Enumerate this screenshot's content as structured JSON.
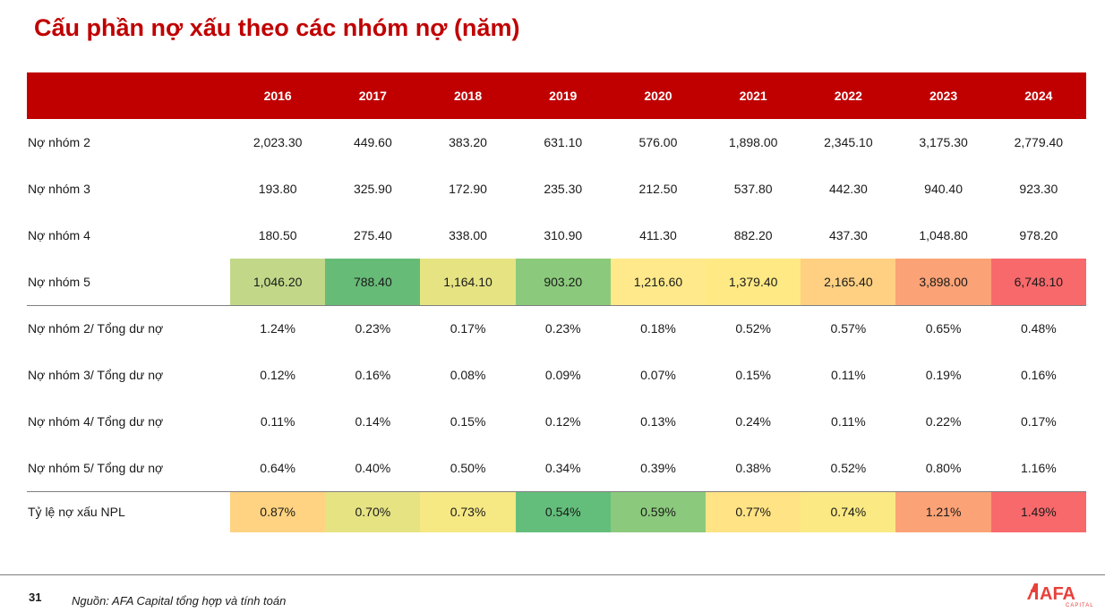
{
  "title": "Cấu phần nợ xấu theo các nhóm nợ (năm)",
  "table": {
    "years": [
      "2016",
      "2017",
      "2018",
      "2019",
      "2020",
      "2021",
      "2022",
      "2023",
      "2024"
    ],
    "rows": [
      {
        "label": "Nợ nhóm 2",
        "values": [
          "2,023.30",
          "449.60",
          "383.20",
          "631.10",
          "576.00",
          "1,898.00",
          "2,345.10",
          "3,175.30",
          "2,779.40"
        ]
      },
      {
        "label": "Nợ nhóm 3",
        "values": [
          "193.80",
          "325.90",
          "172.90",
          "235.30",
          "212.50",
          "537.80",
          "442.30",
          "940.40",
          "923.30"
        ]
      },
      {
        "label": "Nợ nhóm 4",
        "values": [
          "180.50",
          "275.40",
          "338.00",
          "310.90",
          "411.30",
          "882.20",
          "437.30",
          "1,048.80",
          "978.20"
        ]
      },
      {
        "label": "Nợ nhóm 5",
        "values": [
          "1,046.20",
          "788.40",
          "1,164.10",
          "903.20",
          "1,216.60",
          "1,379.40",
          "2,165.40",
          "3,898.00",
          "6,748.10"
        ],
        "colors": [
          "#c2d888",
          "#66bb77",
          "#e6e383",
          "#8bca7c",
          "#ffe98a",
          "#ffe984",
          "#ffd082",
          "#fba276",
          "#f8696b"
        ]
      },
      {
        "label": "Nợ nhóm 2/ Tổng dư nợ",
        "values": [
          "1.24%",
          "0.23%",
          "0.17%",
          "0.23%",
          "0.18%",
          "0.52%",
          "0.57%",
          "0.65%",
          "0.48%"
        ]
      },
      {
        "label": "Nợ nhóm 3/ Tổng dư nợ",
        "values": [
          "0.12%",
          "0.16%",
          "0.08%",
          "0.09%",
          "0.07%",
          "0.15%",
          "0.11%",
          "0.19%",
          "0.16%"
        ]
      },
      {
        "label": "Nợ nhóm 4/ Tổng dư nợ",
        "values": [
          "0.11%",
          "0.14%",
          "0.15%",
          "0.12%",
          "0.13%",
          "0.24%",
          "0.11%",
          "0.22%",
          "0.17%"
        ]
      },
      {
        "label": "Nợ nhóm 5/ Tổng dư nợ",
        "values": [
          "0.64%",
          "0.40%",
          "0.50%",
          "0.34%",
          "0.39%",
          "0.38%",
          "0.52%",
          "0.80%",
          "1.16%"
        ]
      },
      {
        "label": "Tỷ lệ nợ xấu NPL",
        "values": [
          "0.87%",
          "0.70%",
          "0.73%",
          "0.54%",
          "0.59%",
          "0.77%",
          "0.74%",
          "1.21%",
          "1.49%"
        ],
        "colors": [
          "#ffd381",
          "#e6e383",
          "#f6e883",
          "#63be7b",
          "#8bca7c",
          "#ffe384",
          "#fbe983",
          "#fba276",
          "#f8696b"
        ]
      }
    ]
  },
  "footer": {
    "page_number": "31",
    "source": "Nguồn: AFA Capital tổng hợp và tính toán",
    "logo_text": "AFA",
    "logo_sub": "CAPITAL",
    "logo_color": "#e8403a"
  },
  "colors": {
    "accent": "#c00000",
    "header_text": "#ffffff"
  }
}
